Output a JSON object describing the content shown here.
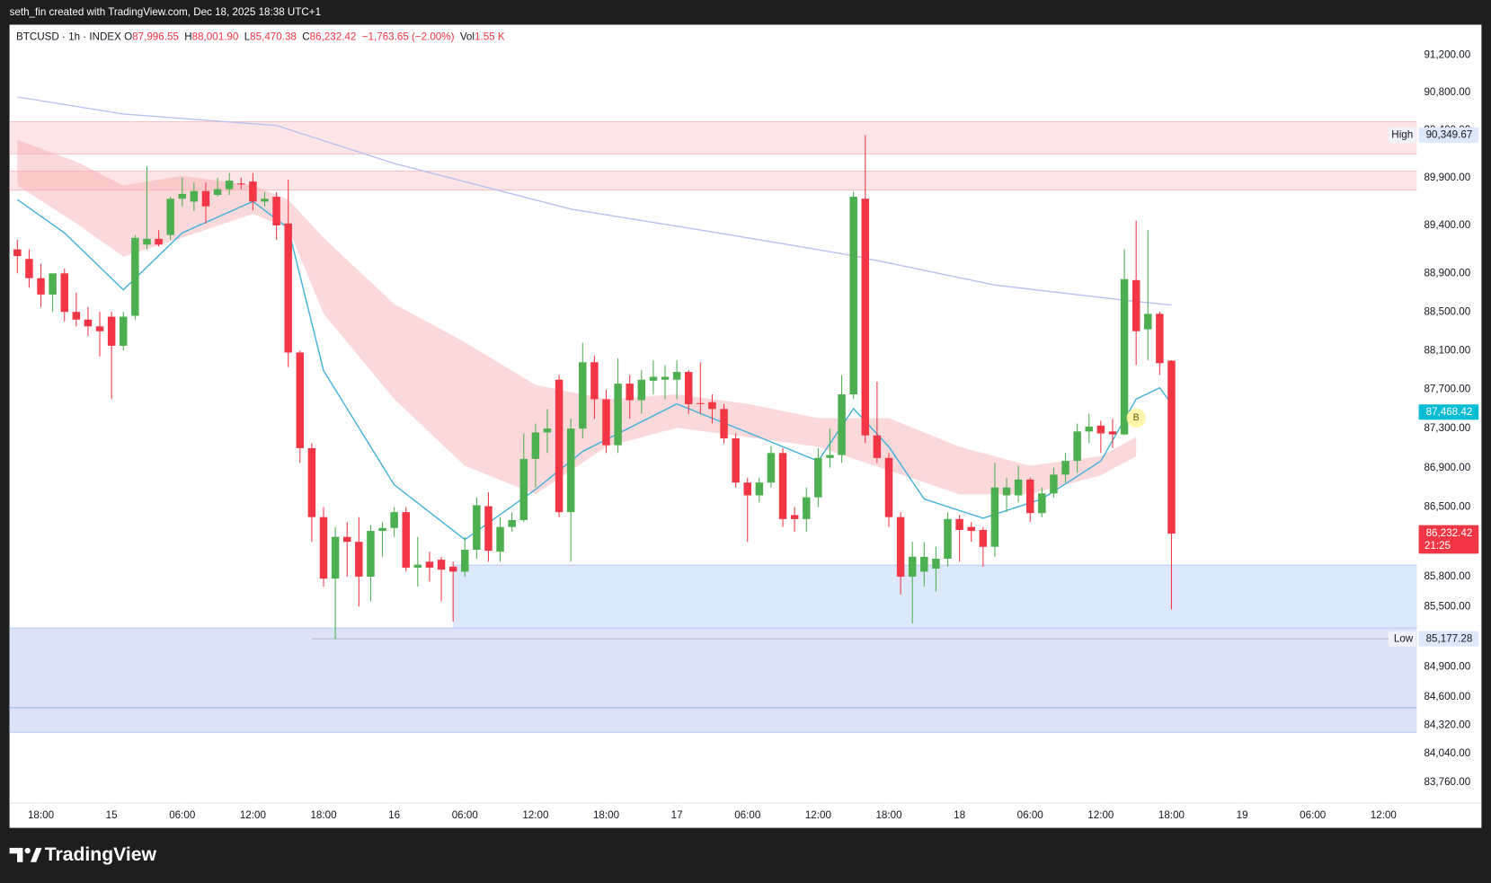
{
  "attribution": "seth_fin created with TradingView.com, Dec 18, 2025 18:38 UTC+1",
  "brand": "TradingView",
  "chart_data": {
    "type": "candlestick",
    "symbol": "BTCUSD · 1h · INDEX",
    "legend": [
      {
        "key": "O",
        "value": "87,996.55"
      },
      {
        "key": "H",
        "value": "88,001.90"
      },
      {
        "key": "L",
        "value": "85,470.38"
      },
      {
        "key": "C",
        "value": "86,232.42"
      }
    ],
    "change": "−1,763.65 (−2.00%)",
    "volume_key": "Vol",
    "volume": "1.55 K",
    "up_color": "#4caf50",
    "down_color": "#f23645",
    "log": true,
    "x": [
      "2025-12-14T16:00",
      "2025-12-14T17:00",
      "2025-12-14T18:00",
      "2025-12-14T19:00",
      "2025-12-14T20:00",
      "2025-12-14T21:00",
      "2025-12-14T22:00",
      "2025-12-14T23:00",
      "2025-12-15T00:00",
      "2025-12-15T01:00",
      "2025-12-15T02:00",
      "2025-12-15T03:00",
      "2025-12-15T04:00",
      "2025-12-15T05:00",
      "2025-12-15T06:00",
      "2025-12-15T07:00",
      "2025-12-15T08:00",
      "2025-12-15T09:00",
      "2025-12-15T10:00",
      "2025-12-15T11:00",
      "2025-12-15T12:00",
      "2025-12-15T13:00",
      "2025-12-15T14:00",
      "2025-12-15T15:00",
      "2025-12-15T16:00",
      "2025-12-15T17:00",
      "2025-12-15T18:00",
      "2025-12-15T19:00",
      "2025-12-15T20:00",
      "2025-12-15T21:00",
      "2025-12-15T22:00",
      "2025-12-15T23:00",
      "2025-12-16T00:00",
      "2025-12-16T01:00",
      "2025-12-16T02:00",
      "2025-12-16T03:00",
      "2025-12-16T04:00",
      "2025-12-16T05:00",
      "2025-12-16T06:00",
      "2025-12-16T07:00",
      "2025-12-16T08:00",
      "2025-12-16T09:00",
      "2025-12-16T10:00",
      "2025-12-16T11:00",
      "2025-12-16T12:00",
      "2025-12-16T13:00",
      "2025-12-16T14:00",
      "2025-12-16T15:00",
      "2025-12-16T16:00",
      "2025-12-16T17:00",
      "2025-12-16T18:00",
      "2025-12-16T19:00",
      "2025-12-16T20:00",
      "2025-12-16T21:00",
      "2025-12-16T22:00",
      "2025-12-16T23:00",
      "2025-12-17T00:00",
      "2025-12-17T01:00",
      "2025-12-17T02:00",
      "2025-12-17T03:00",
      "2025-12-17T04:00",
      "2025-12-17T05:00",
      "2025-12-17T06:00",
      "2025-12-17T07:00",
      "2025-12-17T08:00",
      "2025-12-17T09:00",
      "2025-12-17T10:00",
      "2025-12-17T11:00",
      "2025-12-17T12:00",
      "2025-12-17T13:00",
      "2025-12-17T14:00",
      "2025-12-17T15:00",
      "2025-12-17T16:00",
      "2025-12-17T17:00",
      "2025-12-17T18:00",
      "2025-12-17T19:00",
      "2025-12-17T20:00",
      "2025-12-17T21:00",
      "2025-12-17T22:00",
      "2025-12-17T23:00",
      "2025-12-18T00:00",
      "2025-12-18T01:00",
      "2025-12-18T02:00",
      "2025-12-18T03:00",
      "2025-12-18T04:00",
      "2025-12-18T05:00",
      "2025-12-18T06:00",
      "2025-12-18T07:00",
      "2025-12-18T08:00",
      "2025-12-18T09:00",
      "2025-12-18T10:00",
      "2025-12-18T11:00",
      "2025-12-18T12:00",
      "2025-12-18T13:00",
      "2025-12-18T14:00",
      "2025-12-18T15:00",
      "2025-12-18T16:00",
      "2025-12-18T17:00",
      "2025-12-18T18:00"
    ],
    "open": [
      89150,
      89050,
      88850,
      88680,
      88900,
      88500,
      88420,
      88350,
      88450,
      88150,
      88460,
      89200,
      89260,
      89300,
      89680,
      89650,
      89760,
      89720,
      89780,
      89840,
      89860,
      89650,
      89700,
      89420,
      88080,
      87100,
      86400,
      85780,
      86200,
      86150,
      85800,
      86260,
      86290,
      86450,
      85890,
      85950,
      85970,
      85900,
      85850,
      86070,
      86510,
      86050,
      86300,
      86370,
      86990,
      87260,
      87800,
      86450,
      87300,
      87980,
      87600,
      87130,
      87760,
      87590,
      87790,
      87800,
      87800,
      87880,
      87560,
      87570,
      87500,
      87200,
      86750,
      86620,
      86750,
      87050,
      86420,
      86380,
      86600,
      87000,
      87030,
      87650,
      89680,
      87230,
      87000,
      86400,
      85800,
      85850,
      85880,
      85980,
      86380,
      86300,
      86270,
      86100,
      86620,
      86620,
      86780,
      86440,
      86640,
      86830,
      86970,
      87270,
      87330,
      87270,
      87240,
      88830,
      88320,
      88480,
      87996.55
    ],
    "high": [
      89250,
      89150,
      89000,
      88850,
      88950,
      88700,
      88550,
      88500,
      88500,
      88500,
      89300,
      90020,
      89350,
      89700,
      89900,
      89850,
      89850,
      89900,
      89950,
      89900,
      89950,
      89750,
      89750,
      89880,
      88100,
      87150,
      86500,
      86300,
      86350,
      86400,
      86320,
      86350,
      86500,
      86500,
      86200,
      86050,
      86000,
      85950,
      86200,
      86600,
      86650,
      86400,
      86450,
      87250,
      87350,
      87500,
      87850,
      87400,
      88180,
      88050,
      87700,
      88020,
      87850,
      87900,
      88000,
      87950,
      88000,
      87900,
      87980,
      87650,
      87550,
      87250,
      86800,
      86800,
      87120,
      87100,
      86500,
      86700,
      87100,
      87300,
      87850,
      89750,
      90349.67,
      87780,
      87050,
      86450,
      86150,
      86150,
      86100,
      86450,
      86420,
      86350,
      86300,
      86950,
      86800,
      86920,
      86800,
      86700,
      86900,
      87050,
      87350,
      87450,
      87380,
      87400,
      89150,
      89450,
      89350,
      88500,
      88001.9
    ],
    "low": [
      88900,
      88750,
      88550,
      88500,
      88400,
      88350,
      88250,
      88040,
      87600,
      88100,
      88420,
      89150,
      89180,
      89250,
      89600,
      89550,
      89420,
      89700,
      89720,
      89780,
      89560,
      89600,
      89250,
      87930,
      86950,
      86150,
      85700,
      85177.28,
      85800,
      85500,
      85550,
      86000,
      86200,
      85850,
      85700,
      85750,
      85550,
      85350,
      85800,
      85980,
      85950,
      85950,
      86250,
      86350,
      86700,
      87050,
      86400,
      85950,
      87200,
      87400,
      87050,
      87050,
      87400,
      87450,
      87650,
      87600,
      87600,
      87450,
      87450,
      87350,
      87150,
      86700,
      86150,
      86550,
      86700,
      86300,
      86250,
      86250,
      86500,
      86900,
      86950,
      87600,
      87150,
      86950,
      86300,
      85620,
      85330,
      85700,
      85650,
      85900,
      85950,
      86150,
      85900,
      86000,
      86450,
      86550,
      86350,
      86400,
      86600,
      86750,
      86850,
      87150,
      87050,
      87100,
      87230,
      87950,
      88000,
      87850,
      85470.38
    ],
    "close": [
      89080,
      88850,
      88680,
      88900,
      88500,
      88420,
      88350,
      88300,
      88150,
      88450,
      89270,
      89260,
      89200,
      89680,
      89730,
      89760,
      89600,
      89780,
      89870,
      89830,
      89650,
      89680,
      89400,
      88080,
      87100,
      86400,
      85780,
      86200,
      86150,
      85800,
      86260,
      86290,
      86450,
      85890,
      85920,
      85890,
      85870,
      85850,
      86070,
      86520,
      86060,
      86300,
      86370,
      86990,
      87260,
      87300,
      86450,
      87300,
      87980,
      87600,
      87130,
      87760,
      87590,
      87800,
      87830,
      87830,
      87880,
      87550,
      87550,
      87500,
      87200,
      86750,
      86620,
      86750,
      87050,
      86380,
      86380,
      86600,
      87000,
      87030,
      87650,
      89700,
      87230,
      87000,
      86400,
      85800,
      86000,
      86000,
      85980,
      86380,
      86270,
      86260,
      86100,
      86700,
      86700,
      86780,
      86440,
      86640,
      86830,
      86970,
      87270,
      87320,
      87250,
      87240,
      88840,
      88300,
      88480,
      87970,
      86232.42
    ],
    "xlim": [
      "2025-12-14T15:20",
      "2025-12-19T14:50"
    ],
    "xticks": [
      {
        "value": "2025-12-14T18:00",
        "label": "18:00"
      },
      {
        "value": "2025-12-15T00:00",
        "label": "15"
      },
      {
        "value": "2025-12-15T06:00",
        "label": "06:00"
      },
      {
        "value": "2025-12-15T12:00",
        "label": "12:00"
      },
      {
        "value": "2025-12-15T18:00",
        "label": "18:00"
      },
      {
        "value": "2025-12-16T00:00",
        "label": "16"
      },
      {
        "value": "2025-12-16T06:00",
        "label": "06:00"
      },
      {
        "value": "2025-12-16T12:00",
        "label": "12:00"
      },
      {
        "value": "2025-12-16T18:00",
        "label": "18:00"
      },
      {
        "value": "2025-12-17T00:00",
        "label": "17"
      },
      {
        "value": "2025-12-17T06:00",
        "label": "06:00"
      },
      {
        "value": "2025-12-17T12:00",
        "label": "12:00"
      },
      {
        "value": "2025-12-17T18:00",
        "label": "18:00"
      },
      {
        "value": "2025-12-18T00:00",
        "label": "18"
      },
      {
        "value": "2025-12-18T06:00",
        "label": "06:00"
      },
      {
        "value": "2025-12-18T12:00",
        "label": "12:00"
      },
      {
        "value": "2025-12-18T18:00",
        "label": "18:00"
      },
      {
        "value": "2025-12-19T00:00",
        "label": "19"
      },
      {
        "value": "2025-12-19T06:00",
        "label": "06:00"
      },
      {
        "value": "2025-12-19T12:00",
        "label": "12:00"
      }
    ],
    "ylim": [
      83555,
      91525
    ],
    "yticks": [
      {
        "value": 91200,
        "label": "91,200.00"
      },
      {
        "value": 90800,
        "label": "90,800.00"
      },
      {
        "value": 90400,
        "label": "90,400.00"
      },
      {
        "value": 89900,
        "label": "89,900.00"
      },
      {
        "value": 89400,
        "label": "89,400.00"
      },
      {
        "value": 88900,
        "label": "88,900.00"
      },
      {
        "value": 88500,
        "label": "88,500.00"
      },
      {
        "value": 88100,
        "label": "88,100.00"
      },
      {
        "value": 87700,
        "label": "87,700.00"
      },
      {
        "value": 87300,
        "label": "87,300.00"
      },
      {
        "value": 86900,
        "label": "86,900.00"
      },
      {
        "value": 86500,
        "label": "86,500.00"
      },
      {
        "value": 85800,
        "label": "85,800.00"
      },
      {
        "value": 85500,
        "label": "85,500.00"
      },
      {
        "value": 84900,
        "label": "84,900.00"
      },
      {
        "value": 84600,
        "label": "84,600.00"
      },
      {
        "value": 84320,
        "label": "84,320.00"
      },
      {
        "value": 84040,
        "label": "84,040.00"
      },
      {
        "value": 83760,
        "label": "83,760.00"
      }
    ],
    "zones": [
      {
        "from": "2025-12-14T15:20",
        "high": 90492,
        "low": 90151,
        "color": "#fde4e6",
        "border": "#f8c4c8"
      },
      {
        "from": "2025-12-14T15:20",
        "high": 89970,
        "low": 89771,
        "color": "#fde4e6",
        "border": "#f8c4c8"
      },
      {
        "from": "2025-12-16T05:00",
        "high": 85915,
        "low": 85285,
        "color": "#dde8fc",
        "border": "#b9cdf5"
      },
      {
        "from": "2025-12-14T15:20",
        "high": 85285,
        "low": 84250,
        "color": "#dce3f6",
        "border": "#b9cdf5"
      }
    ],
    "levels": [
      {
        "from": "2025-12-14T15:20",
        "value": 84494,
        "color": "#9fb8ee"
      },
      {
        "from": "2025-12-15T17:00",
        "value": 85177.28,
        "color": "#b8bcc8"
      }
    ],
    "overlays": [
      {
        "type": "band",
        "color": "#f7a9ae",
        "x": [
          "2025-12-14T16:00",
          "2025-12-14T21:00",
          "2025-12-15T01:00",
          "2025-12-15T06:00",
          "2025-12-15T12:00",
          "2025-12-15T15:00",
          "2025-12-15T18:00",
          "2025-12-16T00:00",
          "2025-12-16T06:00",
          "2025-12-16T12:00",
          "2025-12-16T18:00",
          "2025-12-17T00:00",
          "2025-12-17T06:00",
          "2025-12-17T12:00",
          "2025-12-17T18:00",
          "2025-12-18T00:00",
          "2025-12-18T06:00",
          "2025-12-18T12:00",
          "2025-12-18T15:00"
        ],
        "upper": [
          90300,
          90071,
          89820,
          89920,
          89820,
          89671,
          89272,
          88581,
          88186,
          87747,
          87601,
          87650,
          87552,
          87406,
          87406,
          87114,
          86920,
          87018,
          87212
        ],
        "lower": [
          89820,
          89422,
          89074,
          89272,
          89521,
          89372,
          88482,
          87601,
          86920,
          86631,
          87114,
          87308,
          87212,
          87114,
          86872,
          86631,
          86631,
          86823,
          87018
        ]
      },
      {
        "type": "line",
        "color": "#b9c0f0",
        "x": [
          "2025-12-14T16:00",
          "2025-12-15T01:00",
          "2025-12-15T14:00",
          "2025-12-16T00:00",
          "2025-12-16T15:00",
          "2025-12-17T03:00",
          "2025-12-17T15:00",
          "2025-12-18T03:00",
          "2025-12-18T14:00",
          "2025-12-18T18:00"
        ],
        "values": [
          90755,
          90573,
          90452,
          90051,
          89571,
          89332,
          89084,
          88779,
          88621,
          88571
        ]
      },
      {
        "type": "line",
        "color": "#3fb0d8",
        "x": [
          "2025-12-14T16:00",
          "2025-12-14T20:00",
          "2025-12-15T01:00",
          "2025-12-15T06:00",
          "2025-12-15T12:00",
          "2025-12-15T15:00",
          "2025-12-15T18:00",
          "2025-12-16T00:00",
          "2025-12-16T06:00",
          "2025-12-16T12:00",
          "2025-12-16T16:00",
          "2025-12-17T00:00",
          "2025-12-17T06:00",
          "2025-12-17T12:00",
          "2025-12-17T15:00",
          "2025-12-17T18:00",
          "2025-12-17T21:00",
          "2025-12-18T02:00",
          "2025-12-18T07:00",
          "2025-12-18T12:00",
          "2025-12-18T15:00",
          "2025-12-18T17:00",
          "2025-12-18T18:00"
        ],
        "values": [
          89671,
          89322,
          88729,
          89322,
          89651,
          89372,
          87894,
          86727,
          86173,
          86679,
          87066,
          87552,
          87260,
          86968,
          87504,
          87114,
          86583,
          86389,
          86583,
          86968,
          87601,
          87717,
          87552
        ]
      }
    ],
    "markers": [
      {
        "label": "B",
        "x": "2025-12-18T15:00",
        "value": 87330,
        "color": "#fff59d"
      }
    ],
    "price_labels": [
      {
        "label": "High",
        "value": 90349.67,
        "value_label": "90,349.67",
        "color": "#dde8fc"
      },
      {
        "label": "Low",
        "value": 85177.28,
        "value_label": "85,177.28",
        "color": "#dde8fc"
      },
      {
        "value": 87468.42,
        "value_label": "87,468.42",
        "color": "#00bcd4"
      },
      {
        "value": 86232.42,
        "value_label": "86,232.42",
        "countdown": "21:25",
        "color": "#f23645"
      }
    ]
  }
}
